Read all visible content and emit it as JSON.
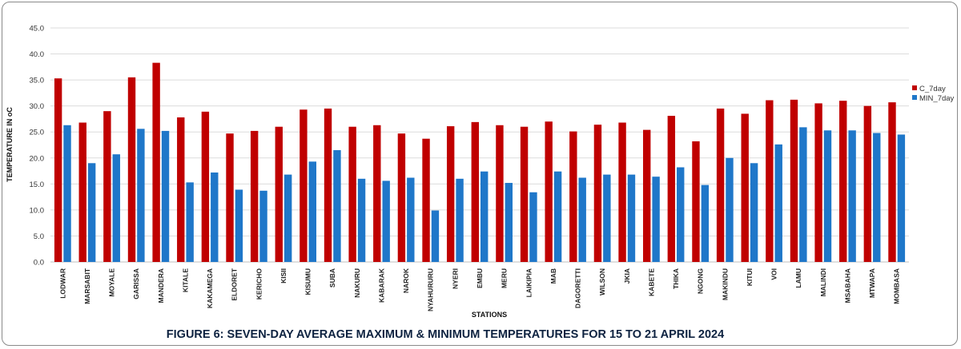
{
  "chart_data": {
    "type": "bar",
    "title": "FIGURE 6: SEVEN-DAY AVERAGE MAXIMUM & MINIMUM TEMPERATURES  FOR  15 TO 21 APRIL 2024",
    "xlabel": "STATIONS",
    "ylabel": "TEMPERATURE IN oC",
    "ylim": [
      0,
      45
    ],
    "yticks": [
      "0.0",
      "5.0",
      "10.0",
      "15.0",
      "20.0",
      "25.0",
      "30.0",
      "35.0",
      "40.0",
      "45.0"
    ],
    "grid": true,
    "legend_position": "right",
    "categories": [
      "LODWAR",
      "MARSABIT",
      "MOYALE",
      "GARISSA",
      "MANDERA",
      "KITALE",
      "KAKAMEGA",
      "ELDORET",
      "KERICHO",
      "KISII",
      "KISUMU",
      "SUBA",
      "NAKURU",
      "KABARAK",
      "NAROK",
      "NYAHURURU",
      "NYERI",
      "EMBU",
      "MERU",
      "LAIKIPIA",
      "MAB",
      "DAGORETTI",
      "WILSON",
      "JKIA",
      "KABETE",
      "THIKA",
      "NGONG",
      "MAKINDU",
      "KITUI",
      "VOI",
      "LAMU",
      "MALINDI",
      "MSABAHA",
      "MTWAPA",
      "MOMBASA"
    ],
    "series": [
      {
        "name": "C_7day",
        "color": "#c00000",
        "values": [
          35.3,
          26.8,
          29.0,
          35.5,
          38.3,
          27.8,
          28.9,
          24.7,
          25.2,
          26.0,
          29.3,
          29.5,
          26.0,
          26.3,
          24.7,
          23.7,
          26.1,
          26.9,
          26.3,
          26.0,
          27.0,
          25.1,
          26.4,
          26.8,
          25.4,
          28.1,
          23.2,
          29.5,
          28.5,
          31.1,
          31.2,
          30.5,
          31.0,
          30.0,
          30.7
        ]
      },
      {
        "name": "MIN_7day",
        "color": "#1f77c9",
        "values": [
          26.3,
          19.0,
          20.7,
          25.6,
          25.2,
          15.3,
          17.2,
          13.9,
          13.7,
          16.8,
          19.3,
          21.5,
          16.0,
          15.6,
          16.2,
          9.9,
          16.0,
          17.4,
          15.2,
          13.4,
          17.4,
          16.2,
          16.8,
          16.8,
          16.4,
          18.2,
          14.8,
          20.0,
          19.0,
          22.6,
          25.9,
          25.3,
          25.3,
          24.8,
          24.5
        ]
      }
    ]
  }
}
